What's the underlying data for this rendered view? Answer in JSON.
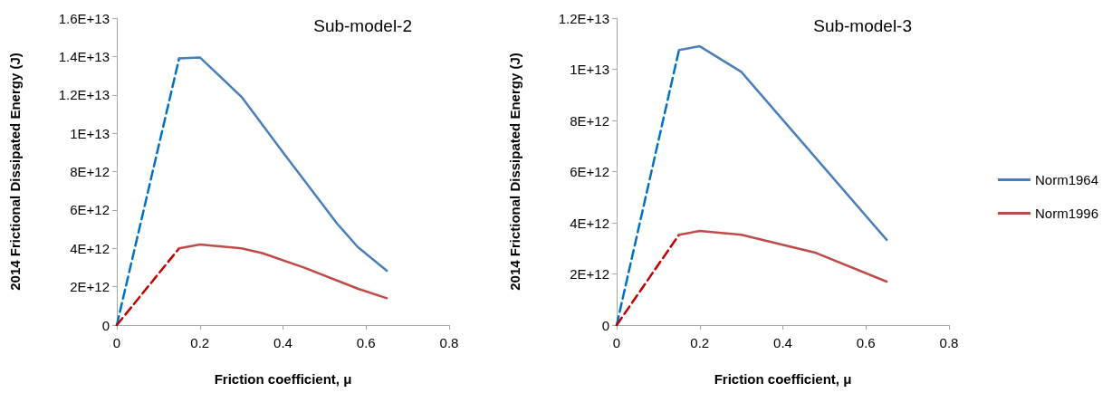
{
  "chart_data": [
    {
      "type": "line",
      "title": "Sub-model-2",
      "xlabel": "Friction coefficient, μ",
      "ylabel": "2014 Frictional Dissipated Energy (J)",
      "xlim": [
        0,
        0.8
      ],
      "xticks": [
        0,
        0.2,
        0.4,
        0.6,
        0.8
      ],
      "ylim": [
        0,
        16000000000000
      ],
      "yticks": [
        {
          "value": 0,
          "label": "0"
        },
        {
          "value": 2000000000000,
          "label": "2E+12"
        },
        {
          "value": 4000000000000,
          "label": "4E+12"
        },
        {
          "value": 6000000000000,
          "label": "6E+12"
        },
        {
          "value": 8000000000000,
          "label": "8E+12"
        },
        {
          "value": 10000000000000,
          "label": "1E+13"
        },
        {
          "value": 12000000000000,
          "label": "1.2E+13"
        },
        {
          "value": 14000000000000,
          "label": "1.4E+13"
        },
        {
          "value": 16000000000000,
          "label": "1.6E+13"
        }
      ],
      "grid": false,
      "legend": false,
      "marker": "none",
      "series": [
        {
          "color": "#0070c0",
          "line_style": "dashed",
          "x": [
            0,
            0.15
          ],
          "values": [
            0,
            13900000000000
          ]
        },
        {
          "color": "#c00000",
          "line_style": "dashed",
          "x": [
            0,
            0.15
          ],
          "values": [
            0,
            4000000000000
          ]
        },
        {
          "color": "#4a7ebb",
          "line_style": "solid",
          "x": [
            0.15,
            0.2,
            0.3,
            0.4,
            0.53,
            0.58,
            0.65
          ],
          "values": [
            13900000000000,
            13950000000000,
            11900000000000,
            9000000000000,
            5300000000000,
            4070000000000,
            2830000000000
          ]
        },
        {
          "color": "#be4b48",
          "line_style": "solid",
          "x": [
            0.15,
            0.2,
            0.3,
            0.35,
            0.45,
            0.58,
            0.65
          ],
          "values": [
            4000000000000,
            4200000000000,
            4000000000000,
            3750000000000,
            3000000000000,
            1900000000000,
            1400000000000
          ]
        }
      ]
    },
    {
      "type": "line",
      "title": "Sub-model-3",
      "xlabel": "Friction coefficient, μ",
      "ylabel": "2014 Frictional Dissipated Energy (J)",
      "xlim": [
        0,
        0.8
      ],
      "xticks": [
        0,
        0.2,
        0.4,
        0.6,
        0.8
      ],
      "ylim": [
        0,
        12000000000000
      ],
      "yticks": [
        {
          "value": 0,
          "label": "0"
        },
        {
          "value": 2000000000000,
          "label": "2E+12"
        },
        {
          "value": 4000000000000,
          "label": "4E+12"
        },
        {
          "value": 6000000000000,
          "label": "6E+12"
        },
        {
          "value": 8000000000000,
          "label": "8E+12"
        },
        {
          "value": 10000000000000,
          "label": "1E+13"
        },
        {
          "value": 12000000000000,
          "label": "1.2E+13"
        }
      ],
      "grid": false,
      "legend": "right",
      "marker": "none",
      "series": [
        {
          "color": "#0070c0",
          "line_style": "dashed",
          "x": [
            0,
            0.15
          ],
          "values": [
            0,
            10750000000000
          ]
        },
        {
          "color": "#c00000",
          "line_style": "dashed",
          "x": [
            0,
            0.15
          ],
          "values": [
            0,
            3530000000000
          ]
        },
        {
          "name": "Norm1964",
          "color": "#4a7ebb",
          "line_style": "solid",
          "x": [
            0.15,
            0.2,
            0.3,
            0.65
          ],
          "values": [
            10750000000000,
            10900000000000,
            9900000000000,
            3330000000000
          ]
        },
        {
          "name": "Norm1996",
          "color": "#be4b48",
          "line_style": "solid",
          "x": [
            0.15,
            0.2,
            0.3,
            0.48,
            0.65
          ],
          "values": [
            3530000000000,
            3680000000000,
            3530000000000,
            2820000000000,
            1700000000000
          ]
        }
      ]
    }
  ]
}
